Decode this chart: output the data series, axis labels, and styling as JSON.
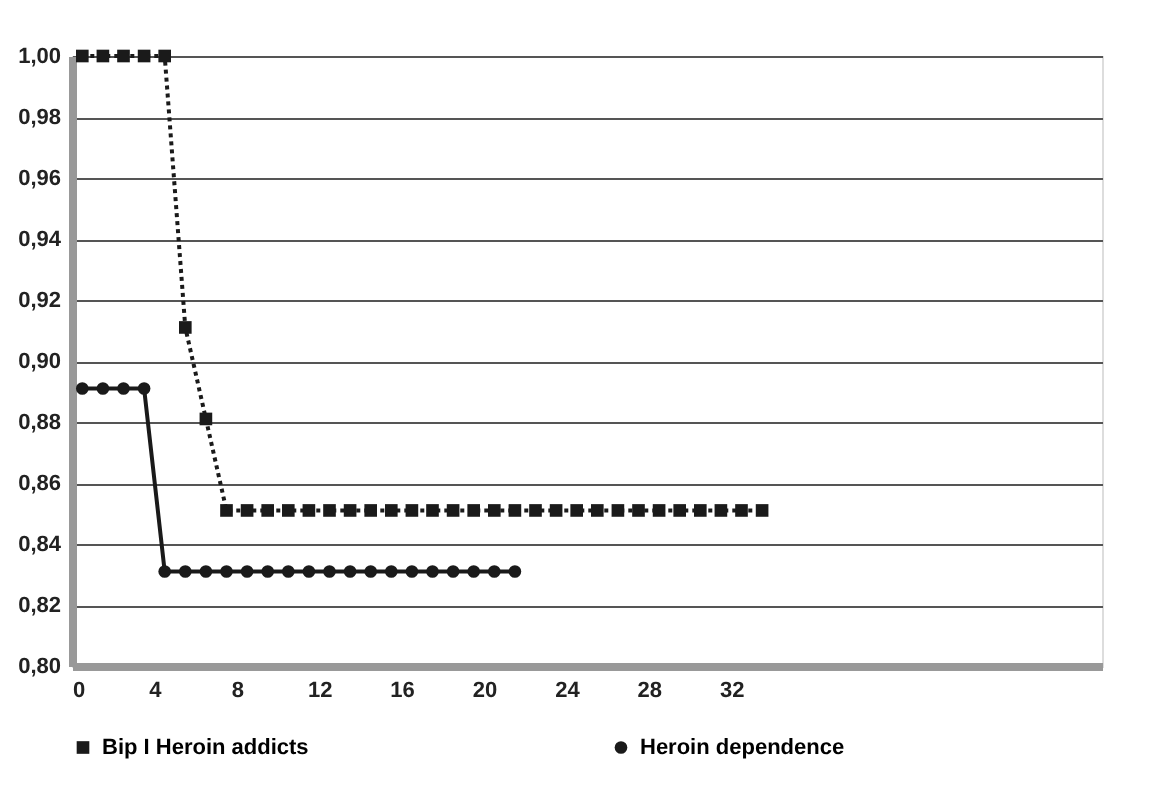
{
  "chart_data": {
    "type": "line",
    "xlim": [
      0,
      50
    ],
    "xticks": [
      0,
      4,
      8,
      12,
      16,
      20,
      24,
      28,
      32
    ],
    "ylim": [
      0.8,
      1.0
    ],
    "yticks": [
      {
        "value": 0.8,
        "label": "0,80"
      },
      {
        "value": 0.82,
        "label": "0,82"
      },
      {
        "value": 0.84,
        "label": "0,84"
      },
      {
        "value": 0.86,
        "label": "0,86"
      },
      {
        "value": 0.88,
        "label": "0,88"
      },
      {
        "value": 0.9,
        "label": "0,90"
      },
      {
        "value": 0.92,
        "label": "0,92"
      },
      {
        "value": 0.94,
        "label": "0,94"
      },
      {
        "value": 0.96,
        "label": "0,96"
      },
      {
        "value": 0.98,
        "label": "0,98"
      },
      {
        "value": 1.0,
        "label": "1,00"
      }
    ],
    "grid": "y",
    "legend": "bottom",
    "series": [
      {
        "name": "Bip I Heroin addicts",
        "color": "#1a1a1a",
        "marker": "square",
        "line_style": "dotted",
        "x": [
          0.5,
          1.5,
          2.5,
          3.5,
          4.5,
          5.5,
          6.5,
          7.5,
          8.5,
          9.5,
          10.5,
          11.5,
          12.5,
          13.5,
          14.5,
          15.5,
          16.5,
          17.5,
          18.5,
          19.5,
          20.5,
          21.5,
          22.5,
          23.5,
          24.5,
          25.5,
          26.5,
          27.5,
          28.5,
          29.5,
          30.5,
          31.5,
          32.5,
          33.5
        ],
        "values": [
          1.0,
          1.0,
          1.0,
          1.0,
          1.0,
          0.911,
          0.881,
          0.851,
          0.851,
          0.851,
          0.851,
          0.851,
          0.851,
          0.851,
          0.851,
          0.851,
          0.851,
          0.851,
          0.851,
          0.851,
          0.851,
          0.851,
          0.851,
          0.851,
          0.851,
          0.851,
          0.851,
          0.851,
          0.851,
          0.851,
          0.851,
          0.851,
          0.851,
          0.851
        ]
      },
      {
        "name": "Heroin dependence",
        "color": "#1a1a1a",
        "marker": "circle",
        "line_style": "solid",
        "x": [
          0.5,
          1.5,
          2.5,
          3.5,
          4.5,
          5.5,
          6.5,
          7.5,
          8.5,
          9.5,
          10.5,
          11.5,
          12.5,
          13.5,
          14.5,
          15.5,
          16.5,
          17.5,
          18.5,
          19.5,
          20.5,
          21.5
        ],
        "values": [
          0.891,
          0.891,
          0.891,
          0.891,
          0.831,
          0.831,
          0.831,
          0.831,
          0.831,
          0.831,
          0.831,
          0.831,
          0.831,
          0.831,
          0.831,
          0.831,
          0.831,
          0.831,
          0.831,
          0.831,
          0.831,
          0.831
        ]
      }
    ]
  }
}
